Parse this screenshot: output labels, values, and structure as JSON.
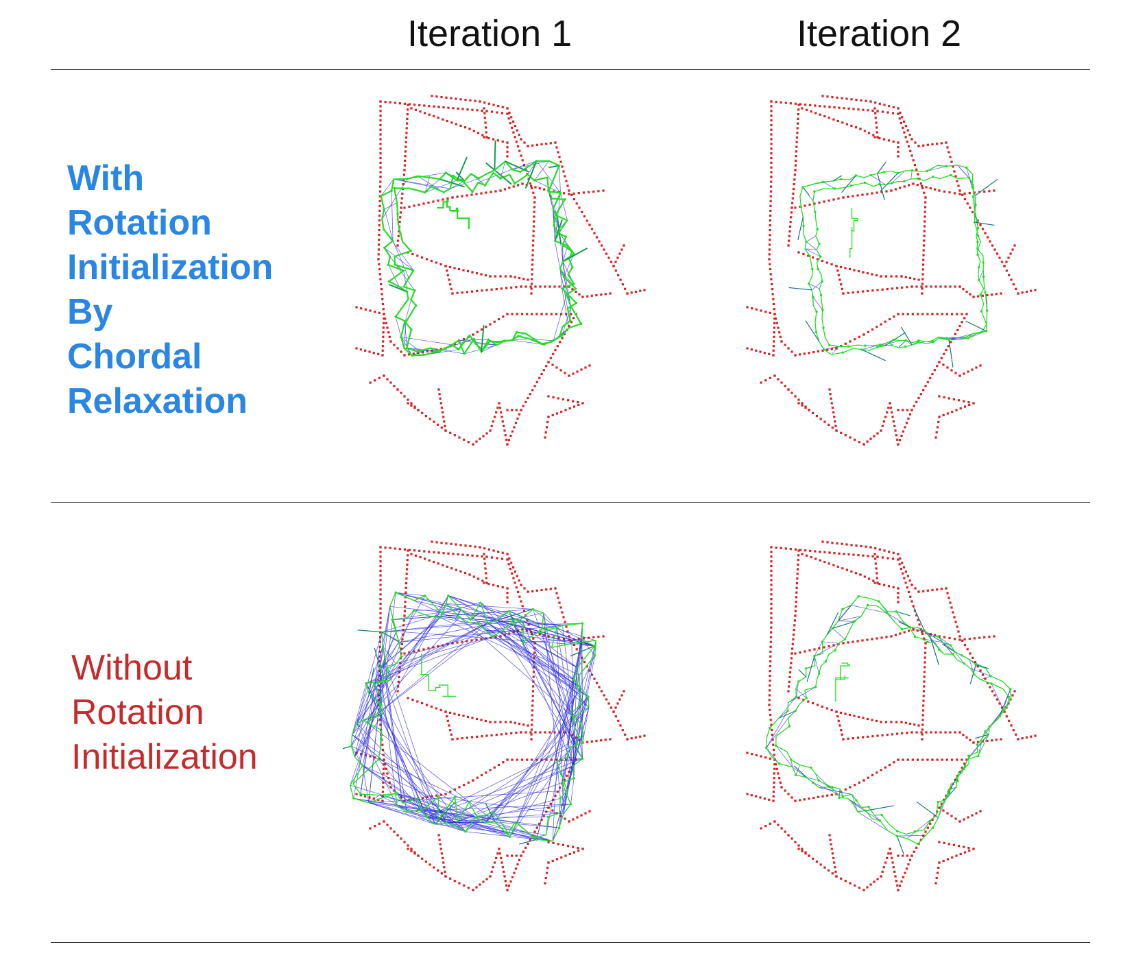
{
  "columns": [
    "Iteration 1",
    "Iteration 2"
  ],
  "rows": [
    {
      "label_lines": [
        "With",
        "Rotation",
        "Initialization",
        "By",
        "Chordal",
        "Relaxation"
      ],
      "color": "#2a86e4",
      "bold": true
    },
    {
      "label_lines": [
        "Without",
        "Rotation",
        "Initialization"
      ],
      "color": "#c62a2a",
      "bold": false
    }
  ],
  "colors": {
    "ground_truth": "#d62020",
    "estimate_nodes": "#22dd22",
    "constraint_edges": "#3030e0"
  }
}
